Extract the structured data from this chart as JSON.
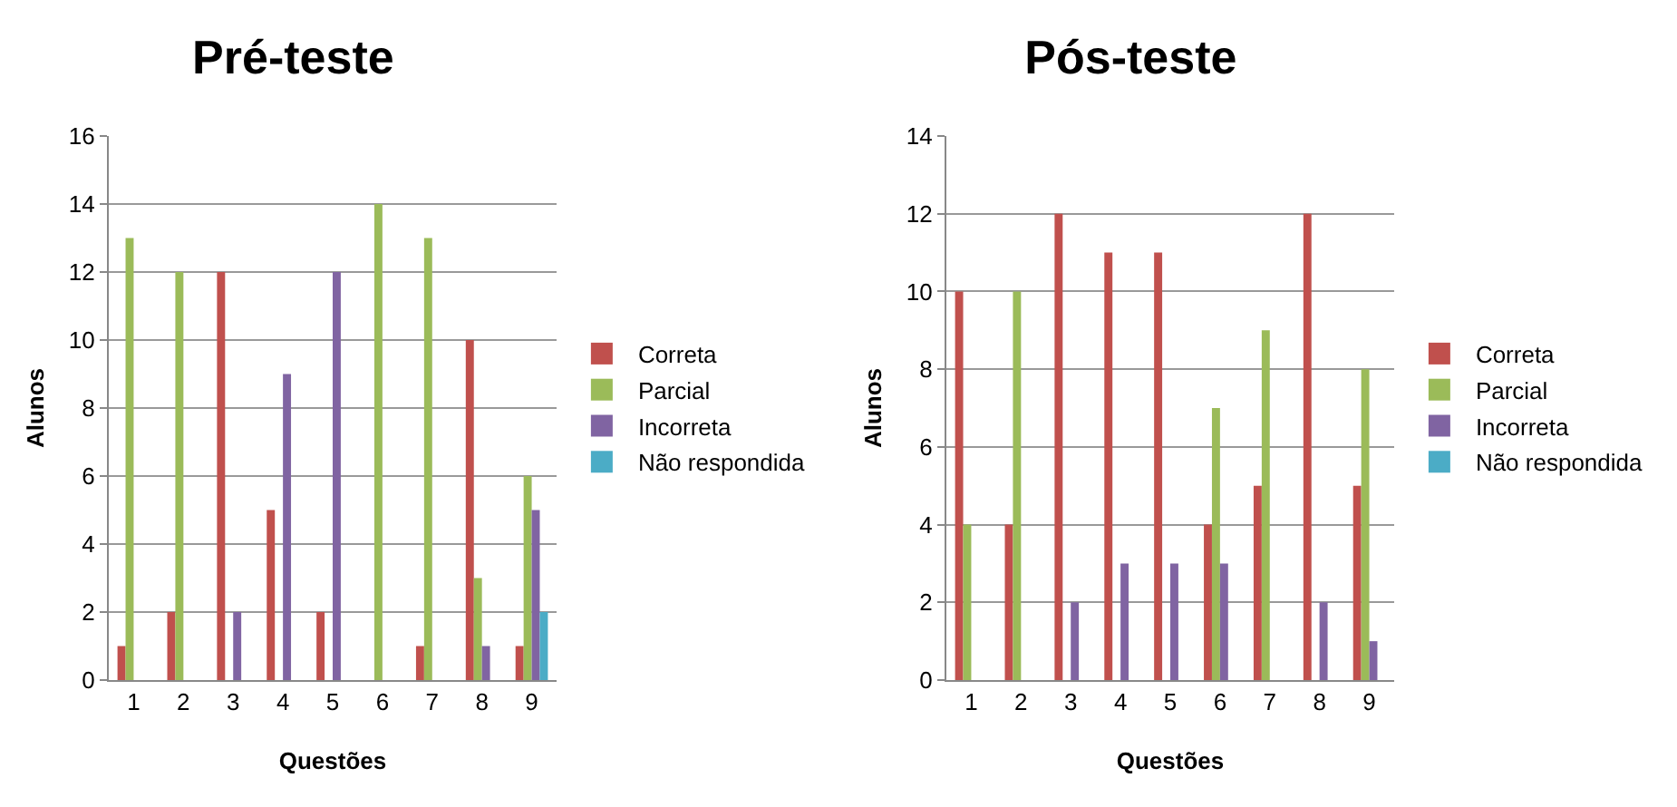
{
  "chart_data": [
    {
      "type": "bar",
      "title": "Pré-teste",
      "xlabel": "Questões",
      "ylabel": "Alunos",
      "categories": [
        "1",
        "2",
        "3",
        "4",
        "5",
        "6",
        "7",
        "8",
        "9"
      ],
      "ylim": [
        0,
        16
      ],
      "yticks": [
        0,
        2,
        4,
        6,
        8,
        10,
        12,
        14,
        16
      ],
      "grid": "y",
      "legend": "right",
      "series": [
        {
          "name": "Correta",
          "color": "#c0504d",
          "values": [
            1,
            2,
            12,
            5,
            2,
            0,
            1,
            10,
            1
          ]
        },
        {
          "name": "Parcial",
          "color": "#9bbb59",
          "values": [
            13,
            12,
            0,
            0,
            0,
            14,
            13,
            3,
            6
          ]
        },
        {
          "name": "Incorreta",
          "color": "#8064a2",
          "values": [
            0,
            0,
            2,
            9,
            12,
            0,
            0,
            1,
            5
          ]
        },
        {
          "name": "Não respondida",
          "color": "#4bacc6",
          "values": [
            0,
            0,
            0,
            0,
            0,
            0,
            0,
            0,
            2
          ]
        }
      ]
    },
    {
      "type": "bar",
      "title": "Pós-teste",
      "xlabel": "Questões",
      "ylabel": "Alunos",
      "categories": [
        "1",
        "2",
        "3",
        "4",
        "5",
        "6",
        "7",
        "8",
        "9"
      ],
      "ylim": [
        0,
        14
      ],
      "yticks": [
        0,
        2,
        4,
        6,
        8,
        10,
        12,
        14
      ],
      "grid": "y",
      "legend": "right",
      "series": [
        {
          "name": "Correta",
          "color": "#c0504d",
          "values": [
            10,
            4,
            12,
            11,
            11,
            4,
            5,
            12,
            5
          ]
        },
        {
          "name": "Parcial",
          "color": "#9bbb59",
          "values": [
            4,
            10,
            0,
            0,
            0,
            7,
            9,
            0,
            8
          ]
        },
        {
          "name": "Incorreta",
          "color": "#8064a2",
          "values": [
            0,
            0,
            2,
            3,
            3,
            3,
            0,
            2,
            1
          ]
        },
        {
          "name": "Não respondida",
          "color": "#4bacc6",
          "values": [
            0,
            0,
            0,
            0,
            0,
            0,
            0,
            0,
            0
          ]
        }
      ]
    }
  ]
}
